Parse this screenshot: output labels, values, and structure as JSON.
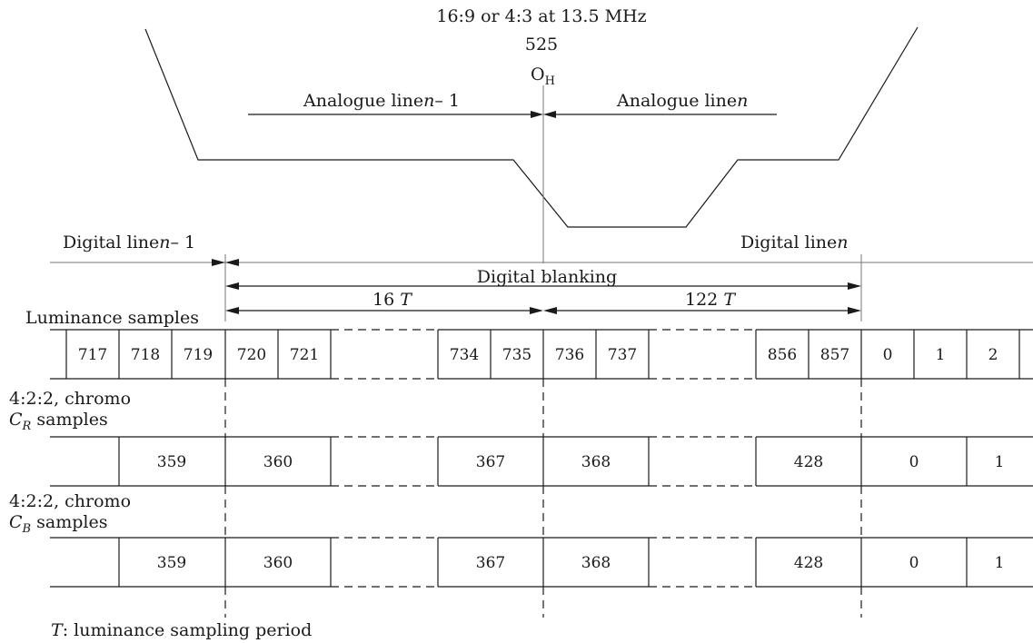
{
  "header": {
    "line1": "16:9 or 4:3 at 13.5 MHz",
    "line2": "525",
    "oh_main": "O",
    "oh_sub": "H"
  },
  "analogue": {
    "prev_label": "Analogue line",
    "prev_n": "n",
    "prev_minus": "– 1",
    "next_label": "Analogue line",
    "next_n": "n"
  },
  "digital": {
    "prev_label": "Digital line",
    "prev_n": "n",
    "prev_minus": "– 1",
    "next_label": "Digital line",
    "next_n": "n",
    "blanking": "Digital blanking",
    "t16_num": "16 ",
    "t16_t": "T",
    "t122_num": "122 ",
    "t122_t": "T"
  },
  "luminance": {
    "label": "Luminance samples",
    "samples": [
      "717",
      "718",
      "719",
      "720",
      "721",
      "734",
      "735",
      "736",
      "737",
      "856",
      "857",
      "0",
      "1",
      "2"
    ]
  },
  "cr": {
    "label_line1": "4:2:2, chromo",
    "label_c": "C",
    "label_sub": "R",
    "label_rest": " samples",
    "samples": [
      "359",
      "360",
      "367",
      "368",
      "428",
      "0",
      "1"
    ]
  },
  "cb": {
    "label_line1": "4:2:2, chromo",
    "label_c": "C",
    "label_sub": "B",
    "label_rest": " samples",
    "samples": [
      "359",
      "360",
      "367",
      "368",
      "428",
      "0",
      "1"
    ]
  },
  "footnote": {
    "t": "T",
    "text": ": luminance sampling period"
  }
}
